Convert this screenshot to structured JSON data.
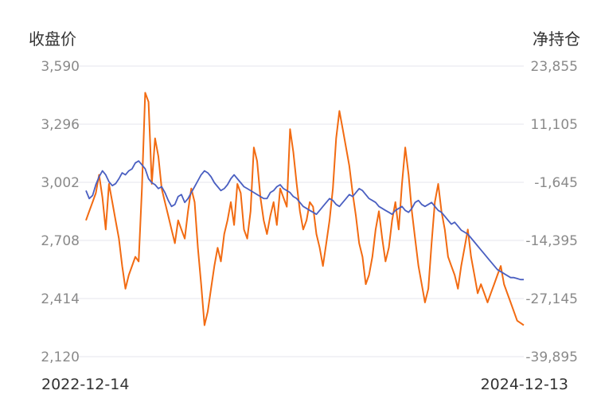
{
  "chart_data": {
    "type": "line",
    "left_axis_title": "收盘价",
    "right_axis_title": "净持仓",
    "left_ticks": [
      "3,590",
      "3,296",
      "3,002",
      "2,708",
      "2,414",
      "2,120"
    ],
    "right_ticks": [
      "23,855",
      "11,105",
      "-1,645",
      "-14,395",
      "-27,145",
      "-39,895"
    ],
    "x_start_label": "2022-12-14",
    "x_end_label": "2024-12-13",
    "ylim_left": [
      2120,
      3590
    ],
    "ylim_right": [
      -39895,
      23855
    ],
    "grid": true,
    "colors": {
      "close": "#4a5fc1",
      "net_position": "#f26b12"
    },
    "series": [
      {
        "key": "close",
        "axis": "left",
        "values": [
          2960,
          2920,
          2935,
          2990,
          3030,
          3060,
          3040,
          3005,
          2985,
          2995,
          3020,
          3050,
          3040,
          3060,
          3070,
          3100,
          3110,
          3090,
          3070,
          3020,
          3000,
          2990,
          2970,
          2980,
          2950,
          2910,
          2880,
          2890,
          2930,
          2940,
          2900,
          2920,
          2950,
          2980,
          3010,
          3040,
          3060,
          3050,
          3030,
          3000,
          2980,
          2960,
          2970,
          2990,
          3020,
          3040,
          3020,
          3000,
          2980,
          2970,
          2960,
          2950,
          2940,
          2930,
          2920,
          2920,
          2950,
          2960,
          2980,
          2990,
          2970,
          2960,
          2950,
          2930,
          2920,
          2900,
          2880,
          2870,
          2860,
          2850,
          2840,
          2860,
          2880,
          2900,
          2920,
          2910,
          2890,
          2880,
          2900,
          2920,
          2940,
          2930,
          2950,
          2970,
          2960,
          2940,
          2920,
          2910,
          2900,
          2880,
          2870,
          2860,
          2850,
          2840,
          2860,
          2870,
          2880,
          2860,
          2850,
          2870,
          2900,
          2910,
          2890,
          2880,
          2890,
          2900,
          2880,
          2860,
          2850,
          2830,
          2810,
          2790,
          2800,
          2780,
          2760,
          2750,
          2740,
          2720,
          2700,
          2680,
          2660,
          2640,
          2620,
          2600,
          2580,
          2560,
          2550,
          2540,
          2530,
          2520,
          2520,
          2515,
          2510,
          2510
        ]
      },
      {
        "key": "net_position",
        "axis": "right",
        "values": [
          -10000,
          -8000,
          -6000,
          -4000,
          0,
          -5000,
          -12000,
          -2000,
          -6000,
          -10000,
          -14000,
          -20000,
          -25000,
          -22000,
          -20000,
          -18000,
          -19000,
          -3000,
          18000,
          16000,
          -2000,
          8000,
          4000,
          -3000,
          -6000,
          -9000,
          -12000,
          -15000,
          -10000,
          -12000,
          -14000,
          -8000,
          -3000,
          -6000,
          -16000,
          -24000,
          -33000,
          -30000,
          -25000,
          -20000,
          -16000,
          -19000,
          -13000,
          -10000,
          -6000,
          -11000,
          -2000,
          -4000,
          -12000,
          -14000,
          -8000,
          6000,
          3000,
          -5000,
          -10000,
          -13000,
          -9000,
          -6000,
          -11000,
          -3000,
          -5000,
          -7000,
          10000,
          5000,
          -2000,
          -8000,
          -12000,
          -10000,
          -6000,
          -7000,
          -13000,
          -16000,
          -20000,
          -15000,
          -10000,
          -3000,
          8000,
          14000,
          10000,
          6000,
          2000,
          -4000,
          -9000,
          -15000,
          -18000,
          -24000,
          -22000,
          -18000,
          -12000,
          -8000,
          -14000,
          -19000,
          -16000,
          -10000,
          -6000,
          -12000,
          -2000,
          6000,
          0,
          -8000,
          -14000,
          -20000,
          -24000,
          -28000,
          -25000,
          -15000,
          -6000,
          -2000,
          -8000,
          -12000,
          -18000,
          -20000,
          -22000,
          -25000,
          -20000,
          -16000,
          -12000,
          -18000,
          -22000,
          -26000,
          -24000,
          -26000,
          -28000,
          -26000,
          -24000,
          -22000,
          -20000,
          -24000,
          -26000,
          -28000,
          -30000,
          -32000,
          -32500,
          -33000
        ]
      }
    ]
  }
}
